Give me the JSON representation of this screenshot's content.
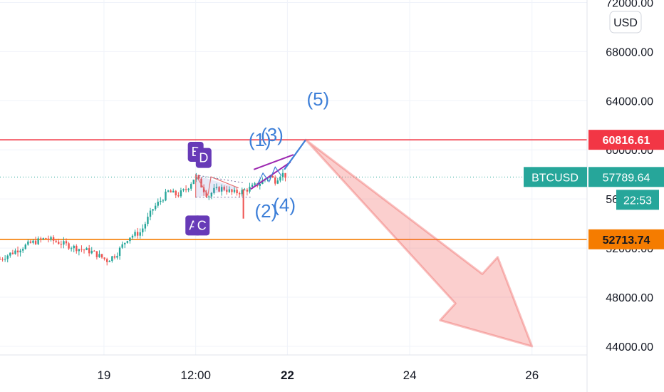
{
  "currency_button": "USD",
  "chart_data": {
    "type": "candlestick",
    "symbol": "BTCUSD",
    "title": "",
    "xlabel": "",
    "ylabel": "",
    "y_ticks": [
      "72000.00",
      "68000.00",
      "64000.00",
      "60000.00",
      "56000.00",
      "52000.00",
      "48000.00",
      "44000.00"
    ],
    "y_tick_values": [
      72000,
      68000,
      64000,
      60000,
      56000,
      52000,
      48000,
      44000
    ],
    "ylim": [
      43300,
      72200
    ],
    "x_ticks": [
      {
        "label": "19",
        "day": 19.0,
        "bold": false
      },
      {
        "label": "12:00",
        "day": 20.5,
        "bold": false
      },
      {
        "label": "22",
        "day": 22.0,
        "bold": true
      },
      {
        "label": "24",
        "day": 24.0,
        "bold": false
      },
      {
        "label": "26",
        "day": 26.0,
        "bold": false
      }
    ],
    "xlim": [
      17.3,
      26.9
    ],
    "price_path": [
      [
        17.3,
        51100
      ],
      [
        17.6,
        51900
      ],
      [
        17.8,
        52400
      ],
      [
        18.05,
        52800
      ],
      [
        18.3,
        52400
      ],
      [
        18.55,
        52000
      ],
      [
        18.8,
        51700
      ],
      [
        19.05,
        51000
      ],
      [
        19.2,
        51500
      ],
      [
        19.4,
        52900
      ],
      [
        19.6,
        53300
      ],
      [
        19.8,
        55200
      ],
      [
        19.95,
        56000
      ],
      [
        20.05,
        56600
      ],
      [
        20.2,
        56300
      ],
      [
        20.35,
        56800
      ],
      [
        20.5,
        57900
      ],
      [
        20.6,
        57000
      ],
      [
        20.7,
        56200
      ],
      [
        20.8,
        56700
      ],
      [
        20.95,
        56900
      ],
      [
        21.1,
        56500
      ],
      [
        21.25,
        56600
      ],
      [
        21.4,
        56900
      ],
      [
        21.55,
        57300
      ],
      [
        21.7,
        57900
      ],
      [
        21.8,
        57500
      ],
      [
        21.9,
        58100
      ],
      [
        22.0,
        57789
      ]
    ],
    "horizontal_lines": [
      {
        "price": 60816.61,
        "label": "60816.61",
        "color": "#f23645"
      },
      {
        "price": 52713.74,
        "label": "52713.74",
        "color": "#f57c00"
      }
    ],
    "current_price": {
      "price": 57789.64,
      "label": "57789.64",
      "countdown": "22:53",
      "color": "#26a69a",
      "symbol_badge": "BTCUSD"
    },
    "harmonic_points": [
      {
        "name": "A",
        "day": 20.5,
        "price": 56100
      },
      {
        "name": "B",
        "day": 20.5,
        "price": 57950
      },
      {
        "name": "C",
        "day": 20.7,
        "price": 56300
      },
      {
        "name": "D",
        "day": 20.75,
        "price": 57800
      }
    ],
    "wave_labels": [
      {
        "label": "(1)",
        "day": 21.55,
        "price": 60300
      },
      {
        "label": "(2)",
        "day": 21.65,
        "price": 54500
      },
      {
        "label": "(3)",
        "day": 21.75,
        "price": 60700
      },
      {
        "label": "(4)",
        "day": 21.95,
        "price": 55000
      },
      {
        "label": "(5)",
        "day": 22.5,
        "price": 63600
      }
    ],
    "projection_line": [
      [
        21.95,
        58400
      ],
      [
        22.3,
        60816
      ]
    ],
    "arrow": {
      "from": [
        22.3,
        60816
      ],
      "to": [
        26.0,
        44000
      ],
      "color": "#f5b5b5"
    }
  }
}
